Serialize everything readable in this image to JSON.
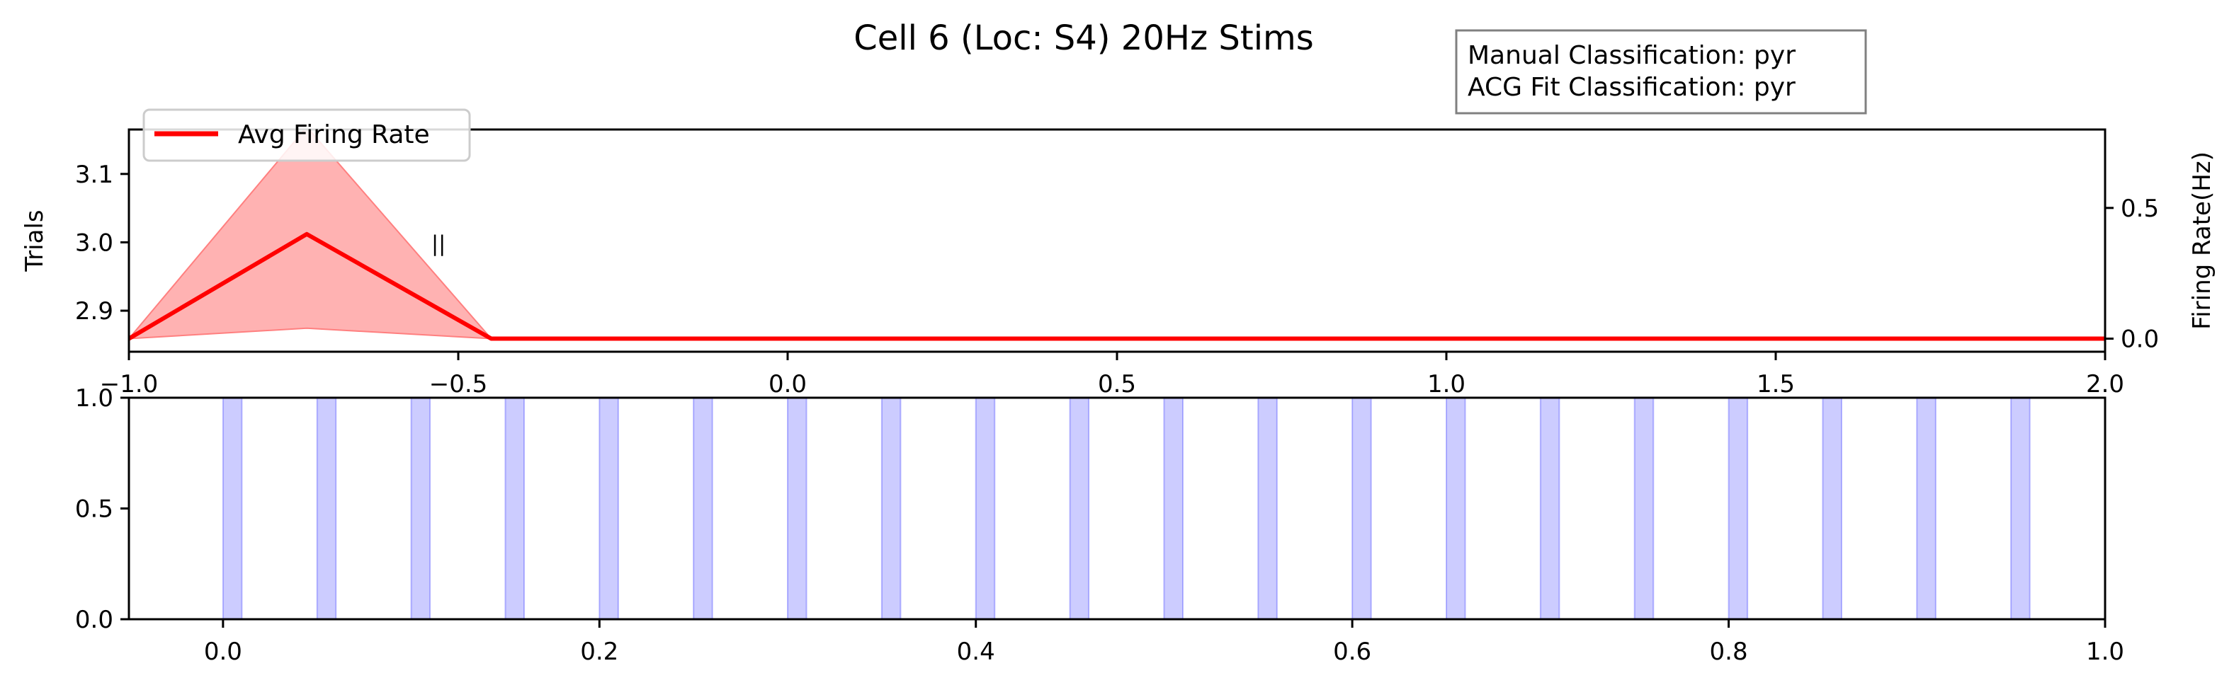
{
  "chart_data": [
    {
      "type": "line",
      "title": "Cell 6 (Loc: S4) 20Hz Stims",
      "info_box": {
        "lines": [
          "Manual Classification: pyr",
          "ACG Fit Classification: pyr"
        ]
      },
      "ylabel": "Trials",
      "ylabel_right": "Firing Rate(Hz)",
      "xlim": [
        -1.0,
        2.0
      ],
      "ylim": [
        2.84,
        3.165
      ],
      "ylim_right": [
        -0.05,
        0.8
      ],
      "x_ticks": [
        "−1.0",
        "−0.5",
        "0.0",
        "0.5",
        "1.0",
        "1.5",
        "2.0"
      ],
      "x_tick_values": [
        -1.0,
        -0.5,
        0.0,
        0.5,
        1.0,
        1.5,
        2.0
      ],
      "y_ticks": [
        "2.9",
        "3.0",
        "3.1"
      ],
      "y_tick_values": [
        2.9,
        3.0,
        3.1
      ],
      "y_ticks_right": [
        "0.0",
        "0.5"
      ],
      "y_tick_values_right": [
        0.0,
        0.5
      ],
      "raster": {
        "x": -0.53,
        "y": 3.0,
        "marker": "||"
      },
      "series": [
        {
          "name": "Avg Firing Rate",
          "x": [
            -1.0,
            -0.73,
            -0.45,
            2.0
          ],
          "y": [
            0.0,
            0.4,
            0.0,
            0.0
          ],
          "lower": [
            0.0,
            0.04,
            0.0,
            0.0
          ],
          "upper": [
            0.0,
            0.81,
            0.0,
            0.0
          ],
          "color": "#ff0000",
          "fill_color": "#ff7f7f"
        }
      ],
      "legend": "top-left"
    },
    {
      "type": "bar",
      "xlim": [
        -0.05,
        1.0
      ],
      "ylim": [
        0.0,
        1.0
      ],
      "x_ticks": [
        "0.0",
        "0.2",
        "0.4",
        "0.6",
        "0.8",
        "1.0"
      ],
      "x_tick_values": [
        0.0,
        0.2,
        0.4,
        0.6,
        0.8,
        1.0
      ],
      "y_ticks": [
        "0.0",
        "0.5",
        "1.0"
      ],
      "y_tick_values": [
        0.0,
        0.5,
        1.0
      ],
      "stim_starts": [
        0.0,
        0.05,
        0.1,
        0.15,
        0.2,
        0.25,
        0.3,
        0.35,
        0.4,
        0.45,
        0.5,
        0.55,
        0.6,
        0.65,
        0.7,
        0.75,
        0.8,
        0.85,
        0.9,
        0.95
      ],
      "stim_width": 0.01,
      "color": "#0000ff",
      "fill_color": "#ccccff"
    }
  ]
}
